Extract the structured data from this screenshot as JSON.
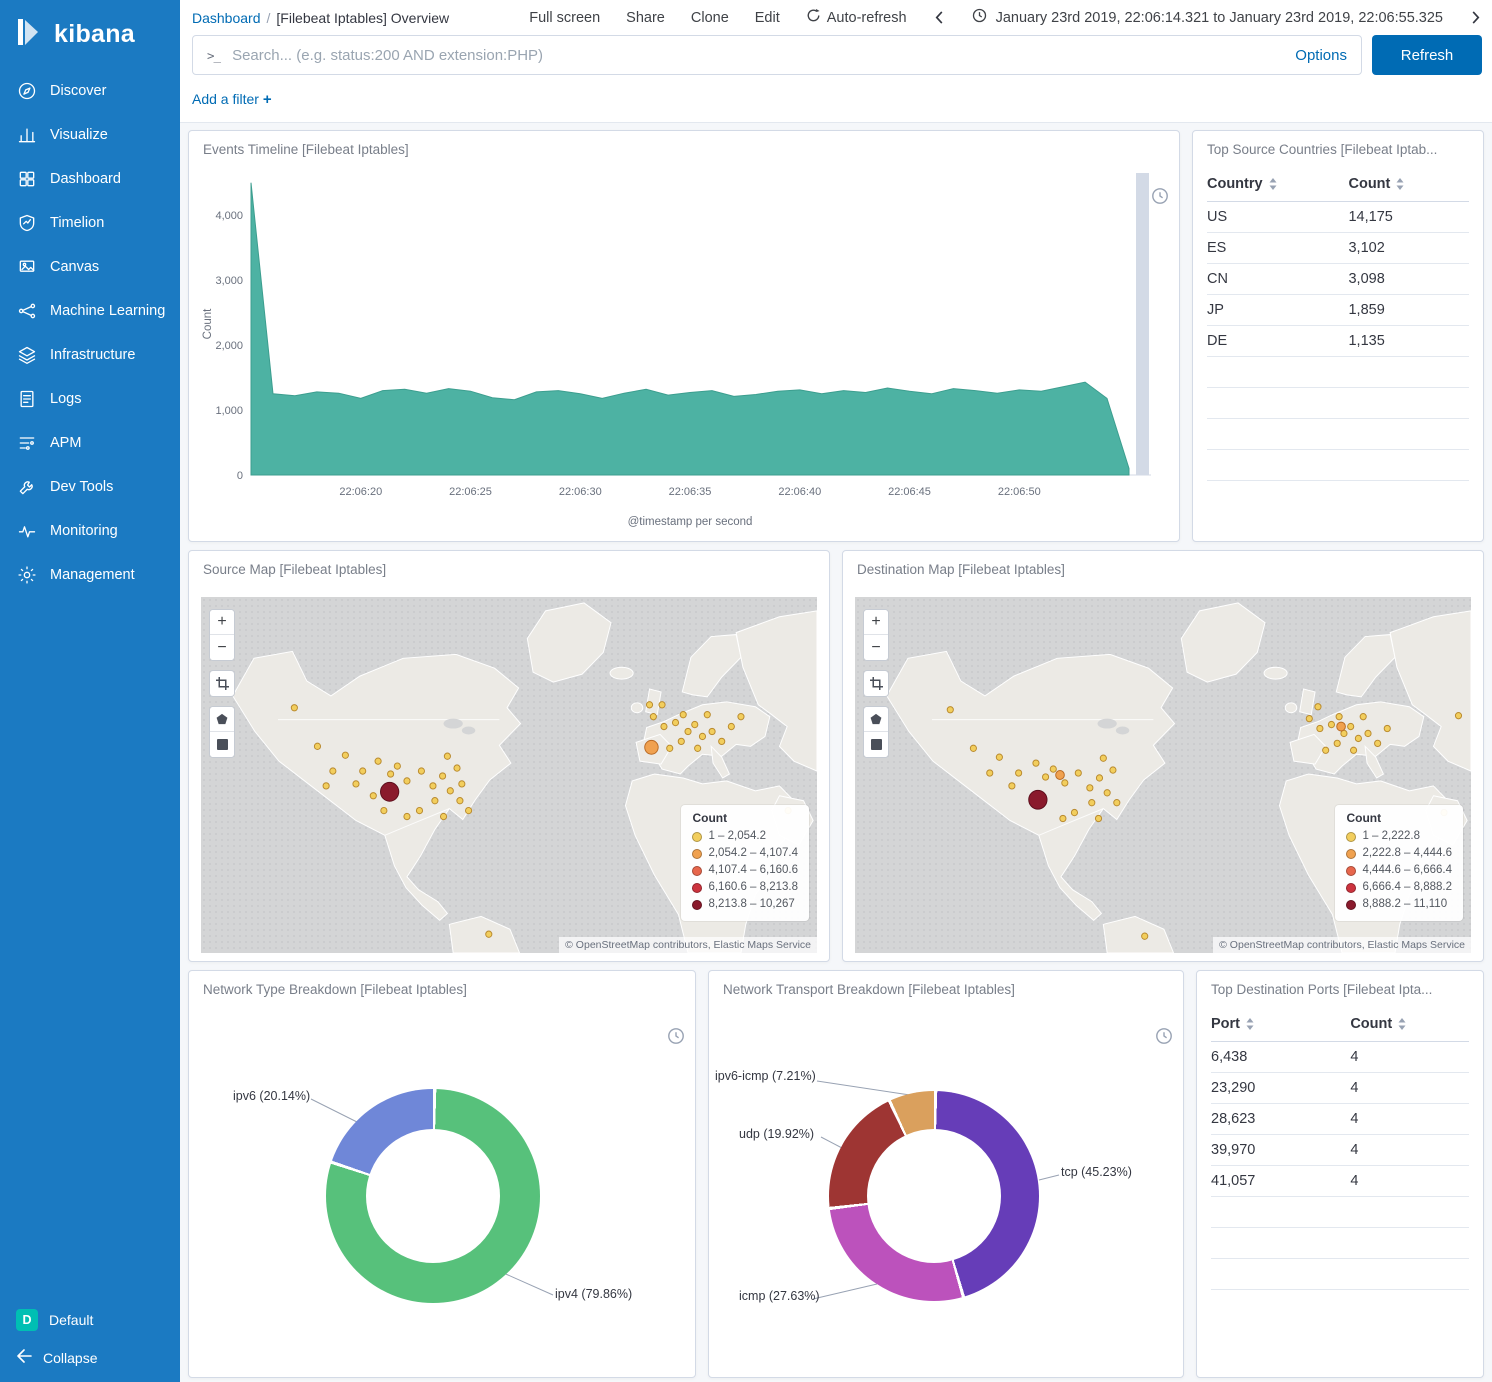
{
  "colors": {
    "sidebar": "#1B7AC2",
    "primary": "#006BB4",
    "link": "#006BB4",
    "page-bg": "#F5F7FA",
    "panel-border": "#D3DAE6"
  },
  "app": {
    "logo_text": "kibana"
  },
  "sidebar": {
    "items": [
      {
        "label": "Discover",
        "icon": "compass-icon"
      },
      {
        "label": "Visualize",
        "icon": "bar-chart-icon"
      },
      {
        "label": "Dashboard",
        "icon": "grid-icon"
      },
      {
        "label": "Timelion",
        "icon": "timelion-shield-icon"
      },
      {
        "label": "Canvas",
        "icon": "canvas-icon"
      },
      {
        "label": "Machine Learning",
        "icon": "machine-learning-icon"
      },
      {
        "label": "Infrastructure",
        "icon": "infrastructure-icon"
      },
      {
        "label": "Logs",
        "icon": "logs-icon"
      },
      {
        "label": "APM",
        "icon": "apm-icon"
      },
      {
        "label": "Dev Tools",
        "icon": "dev-tools-icon"
      },
      {
        "label": "Monitoring",
        "icon": "monitoring-icon"
      },
      {
        "label": "Management",
        "icon": "management-icon"
      }
    ],
    "space": {
      "initial": "D",
      "label": "Default"
    },
    "collapse_label": "Collapse"
  },
  "header": {
    "breadcrumb": {
      "root": "Dashboard",
      "separator": "/",
      "current": "[Filebeat Iptables] Overview"
    },
    "menu": [
      "Full screen",
      "Share",
      "Clone",
      "Edit"
    ],
    "auto_refresh": "Auto-refresh",
    "time_range": "January 23rd 2019, 22:06:14.321 to January 23rd 2019, 22:06:55.325"
  },
  "search": {
    "prompt_icon": ">_",
    "placeholder": "Search... (e.g. status:200 AND extension:PHP)",
    "options_label": "Options",
    "refresh_label": "Refresh"
  },
  "filter_bar": {
    "add_filter_label": "Add a filter",
    "plus": "+"
  },
  "map_controls": {
    "zoom_in": "+",
    "zoom_out": "−"
  },
  "panels": {
    "events_timeline": {
      "title": "Events Timeline [Filebeat Iptables]"
    },
    "top_source_countries": {
      "title": "Top Source Countries [Filebeat Iptab...",
      "columns": [
        "Country",
        "Count"
      ],
      "rows": [
        [
          "US",
          "14,175"
        ],
        [
          "ES",
          "3,102"
        ],
        [
          "CN",
          "3,098"
        ],
        [
          "JP",
          "1,859"
        ],
        [
          "DE",
          "1,135"
        ]
      ]
    },
    "source_map": {
      "title": "Source Map [Filebeat Iptables]",
      "legend": {
        "title": "Count",
        "items": [
          {
            "label": "1 – 2,054.2",
            "color": "#F2CE5D"
          },
          {
            "label": "2,054.2 – 4,107.4",
            "color": "#F0A14F"
          },
          {
            "label": "4,107.4 – 6,160.6",
            "color": "#E7664C"
          },
          {
            "label": "6,160.6 – 8,213.8",
            "color": "#CC333E"
          },
          {
            "label": "8,213.8 – 10,267",
            "color": "#8A1A2C"
          }
        ]
      },
      "attribution": "© OpenStreetMap contributors, Elastic Maps Service"
    },
    "destination_map": {
      "title": "Destination Map [Filebeat Iptables]",
      "legend": {
        "title": "Count",
        "items": [
          {
            "label": "1 – 2,222.8",
            "color": "#F2CE5D"
          },
          {
            "label": "2,222.8 – 4,444.6",
            "color": "#F0A14F"
          },
          {
            "label": "4,444.6 – 6,666.4",
            "color": "#E7664C"
          },
          {
            "label": "6,666.4 – 8,888.2",
            "color": "#CC333E"
          },
          {
            "label": "8,888.2 – 11,110",
            "color": "#8A1A2C"
          }
        ]
      },
      "attribution": "© OpenStreetMap contributors, Elastic Maps Service"
    },
    "network_type": {
      "title": "Network Type Breakdown [Filebeat Iptables]"
    },
    "network_transport": {
      "title": "Network Transport Breakdown [Filebeat Iptables]"
    },
    "top_destination_ports": {
      "title": "Top Destination Ports [Filebeat Ipta...",
      "columns": [
        "Port",
        "Count"
      ],
      "rows": [
        [
          "6,438",
          "4"
        ],
        [
          "23,290",
          "4"
        ],
        [
          "28,623",
          "4"
        ],
        [
          "39,970",
          "4"
        ],
        [
          "41,057",
          "4"
        ]
      ]
    }
  },
  "chart_data": [
    {
      "id": "events_timeline",
      "type": "area",
      "title": "Events Timeline [Filebeat Iptables]",
      "xlabel": "@timestamp per second",
      "ylabel": "Count",
      "color": "#4DB2A3",
      "stroke": "#3C9E8F",
      "x_start": "22:06:15",
      "x_interval_seconds": 1,
      "y_max": 4650,
      "y_ticks": [
        {
          "v": 0,
          "label": "0"
        },
        {
          "v": 1000,
          "label": "1,000"
        },
        {
          "v": 2000,
          "label": "2,000"
        },
        {
          "v": 3000,
          "label": "3,000"
        },
        {
          "v": 4000,
          "label": "4,000"
        }
      ],
      "x_ticks": [
        {
          "i": 5,
          "label": "22:06:20"
        },
        {
          "i": 10,
          "label": "22:06:25"
        },
        {
          "i": 15,
          "label": "22:06:30"
        },
        {
          "i": 20,
          "label": "22:06:35"
        },
        {
          "i": 25,
          "label": "22:06:40"
        },
        {
          "i": 30,
          "label": "22:06:45"
        },
        {
          "i": 35,
          "label": "22:06:50"
        }
      ],
      "values": [
        4500,
        1250,
        1220,
        1280,
        1260,
        1180,
        1300,
        1320,
        1260,
        1330,
        1290,
        1190,
        1160,
        1280,
        1300,
        1250,
        1180,
        1260,
        1320,
        1230,
        1270,
        1300,
        1210,
        1240,
        1290,
        1310,
        1250,
        1300,
        1270,
        1340,
        1290,
        1250,
        1330,
        1300,
        1260,
        1310,
        1290,
        1360,
        1430,
        1180,
        100
      ]
    },
    {
      "id": "network_type",
      "type": "pie",
      "title": "Network Type Breakdown [Filebeat Iptables]",
      "segments": [
        {
          "label": "ipv4",
          "pct": 79.86,
          "color": "#57C17B",
          "display": "ipv4 (79.86%)"
        },
        {
          "label": "ipv6",
          "pct": 20.14,
          "color": "#6F87D8",
          "display": "ipv6 (20.14%)"
        }
      ]
    },
    {
      "id": "network_transport",
      "type": "pie",
      "title": "Network Transport Breakdown [Filebeat Iptables]",
      "segments": [
        {
          "label": "tcp",
          "pct": 45.23,
          "color": "#663DB8",
          "display": "tcp (45.23%)"
        },
        {
          "label": "icmp",
          "pct": 27.63,
          "color": "#BC52BC",
          "display": "icmp (27.63%)"
        },
        {
          "label": "udp",
          "pct": 19.92,
          "color": "#9E3533",
          "display": "udp (19.92%)"
        },
        {
          "label": "ipv6-icmp",
          "pct": 7.21,
          "color": "#DAA05D",
          "display": "ipv6-icmp (7.21%)"
        }
      ]
    }
  ]
}
